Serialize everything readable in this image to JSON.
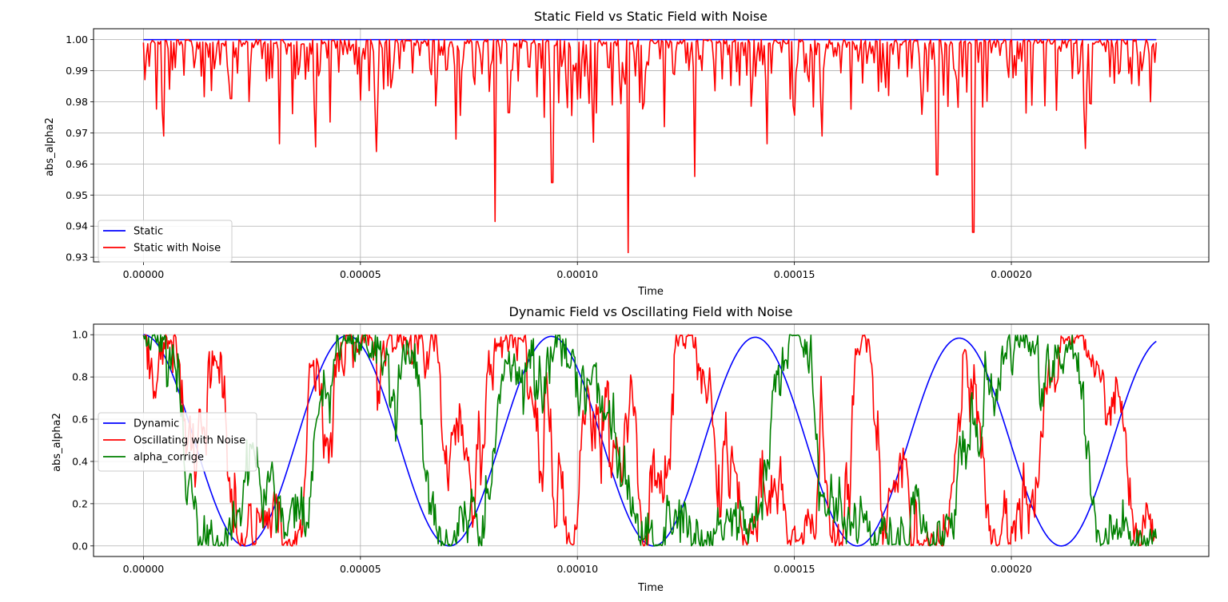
{
  "chart_data": [
    {
      "type": "line",
      "title": "Static Field vs Static Field with Noise",
      "xlabel": "Time",
      "ylabel": "abs_alpha2",
      "xlim": [
        -1.15e-05,
        0.0002455
      ],
      "ylim": [
        0.9285,
        1.0035
      ],
      "x_ticks": [
        0.0,
        5e-05,
        0.0001,
        0.00015,
        0.0002
      ],
      "x_tick_labels": [
        "0.00000",
        "0.00005",
        "0.00010",
        "0.00015",
        "0.00020"
      ],
      "y_ticks": [
        0.93,
        0.94,
        0.95,
        0.96,
        0.97,
        0.98,
        0.99,
        1.0
      ],
      "y_tick_labels": [
        "0.93",
        "0.94",
        "0.95",
        "0.96",
        "0.97",
        "0.98",
        "0.99",
        "1.00"
      ],
      "grid": true,
      "legend_position": "lower-left",
      "x_range": [
        0.0,
        0.0002334
      ],
      "series": [
        {
          "name": "Static",
          "color": "#0000ff",
          "x": [
            0.0,
            0.0002334
          ],
          "y": [
            1.0,
            1.0
          ]
        },
        {
          "name": "Static with Noise",
          "color": "#ff0000",
          "generated": "noisy dips below 1.0",
          "dips": [
            [
              4.7e-06,
              0.969
            ],
            [
              2.02e-05,
              0.981
            ],
            [
              3.13e-05,
              0.9665
            ],
            [
              3.96e-05,
              0.9655
            ],
            [
              4.3e-05,
              0.9735
            ],
            [
              5.38e-05,
              0.964
            ],
            [
              7.21e-05,
              0.968
            ],
            [
              8.09e-05,
              0.9415
            ],
            [
              8.42e-05,
              0.9765
            ],
            [
              9.42e-05,
              0.954
            ],
            [
              0.0001038,
              0.967
            ],
            [
              0.0001117,
              0.9315
            ],
            [
              0.00012,
              0.972
            ],
            [
              0.000127,
              0.956
            ],
            [
              0.0001437,
              0.9665
            ],
            [
              0.0001564,
              0.969
            ],
            [
              0.0001829,
              0.9565
            ],
            [
              0.0001912,
              0.938
            ],
            [
              0.000217,
              0.965
            ],
            [
              0.000232,
              0.98
            ]
          ],
          "y_range": [
            0.9315,
            1.0
          ]
        }
      ]
    },
    {
      "type": "line",
      "title": "Dynamic Field vs Oscillating Field with Noise",
      "xlabel": "Time",
      "ylabel": "abs_alpha2",
      "xlim": [
        -1.15e-05,
        0.0002455
      ],
      "ylim": [
        -0.05,
        1.05
      ],
      "x_ticks": [
        0.0,
        5e-05,
        0.0001,
        0.00015,
        0.0002
      ],
      "x_tick_labels": [
        "0.00000",
        "0.00005",
        "0.00010",
        "0.00015",
        "0.00020"
      ],
      "y_ticks": [
        0.0,
        0.2,
        0.4,
        0.6,
        0.8,
        1.0
      ],
      "y_tick_labels": [
        "0.0",
        "0.2",
        "0.4",
        "0.6",
        "0.8",
        "1.0"
      ],
      "grid": true,
      "legend_position": "center-left",
      "x_range": [
        0.0,
        0.0002334
      ],
      "series": [
        {
          "name": "Dynamic",
          "color": "#0000ff",
          "function": "cos^2",
          "period": 4.7e-05,
          "amplitude_decay": 0.02
        },
        {
          "name": "Oscillating with Noise",
          "color": "#ff0000",
          "function": "cos^2 with random phase walk and noise"
        },
        {
          "name": "alpha_corrige",
          "color": "#008000",
          "function": "cos^2 with random phase walk and noise"
        }
      ]
    }
  ]
}
